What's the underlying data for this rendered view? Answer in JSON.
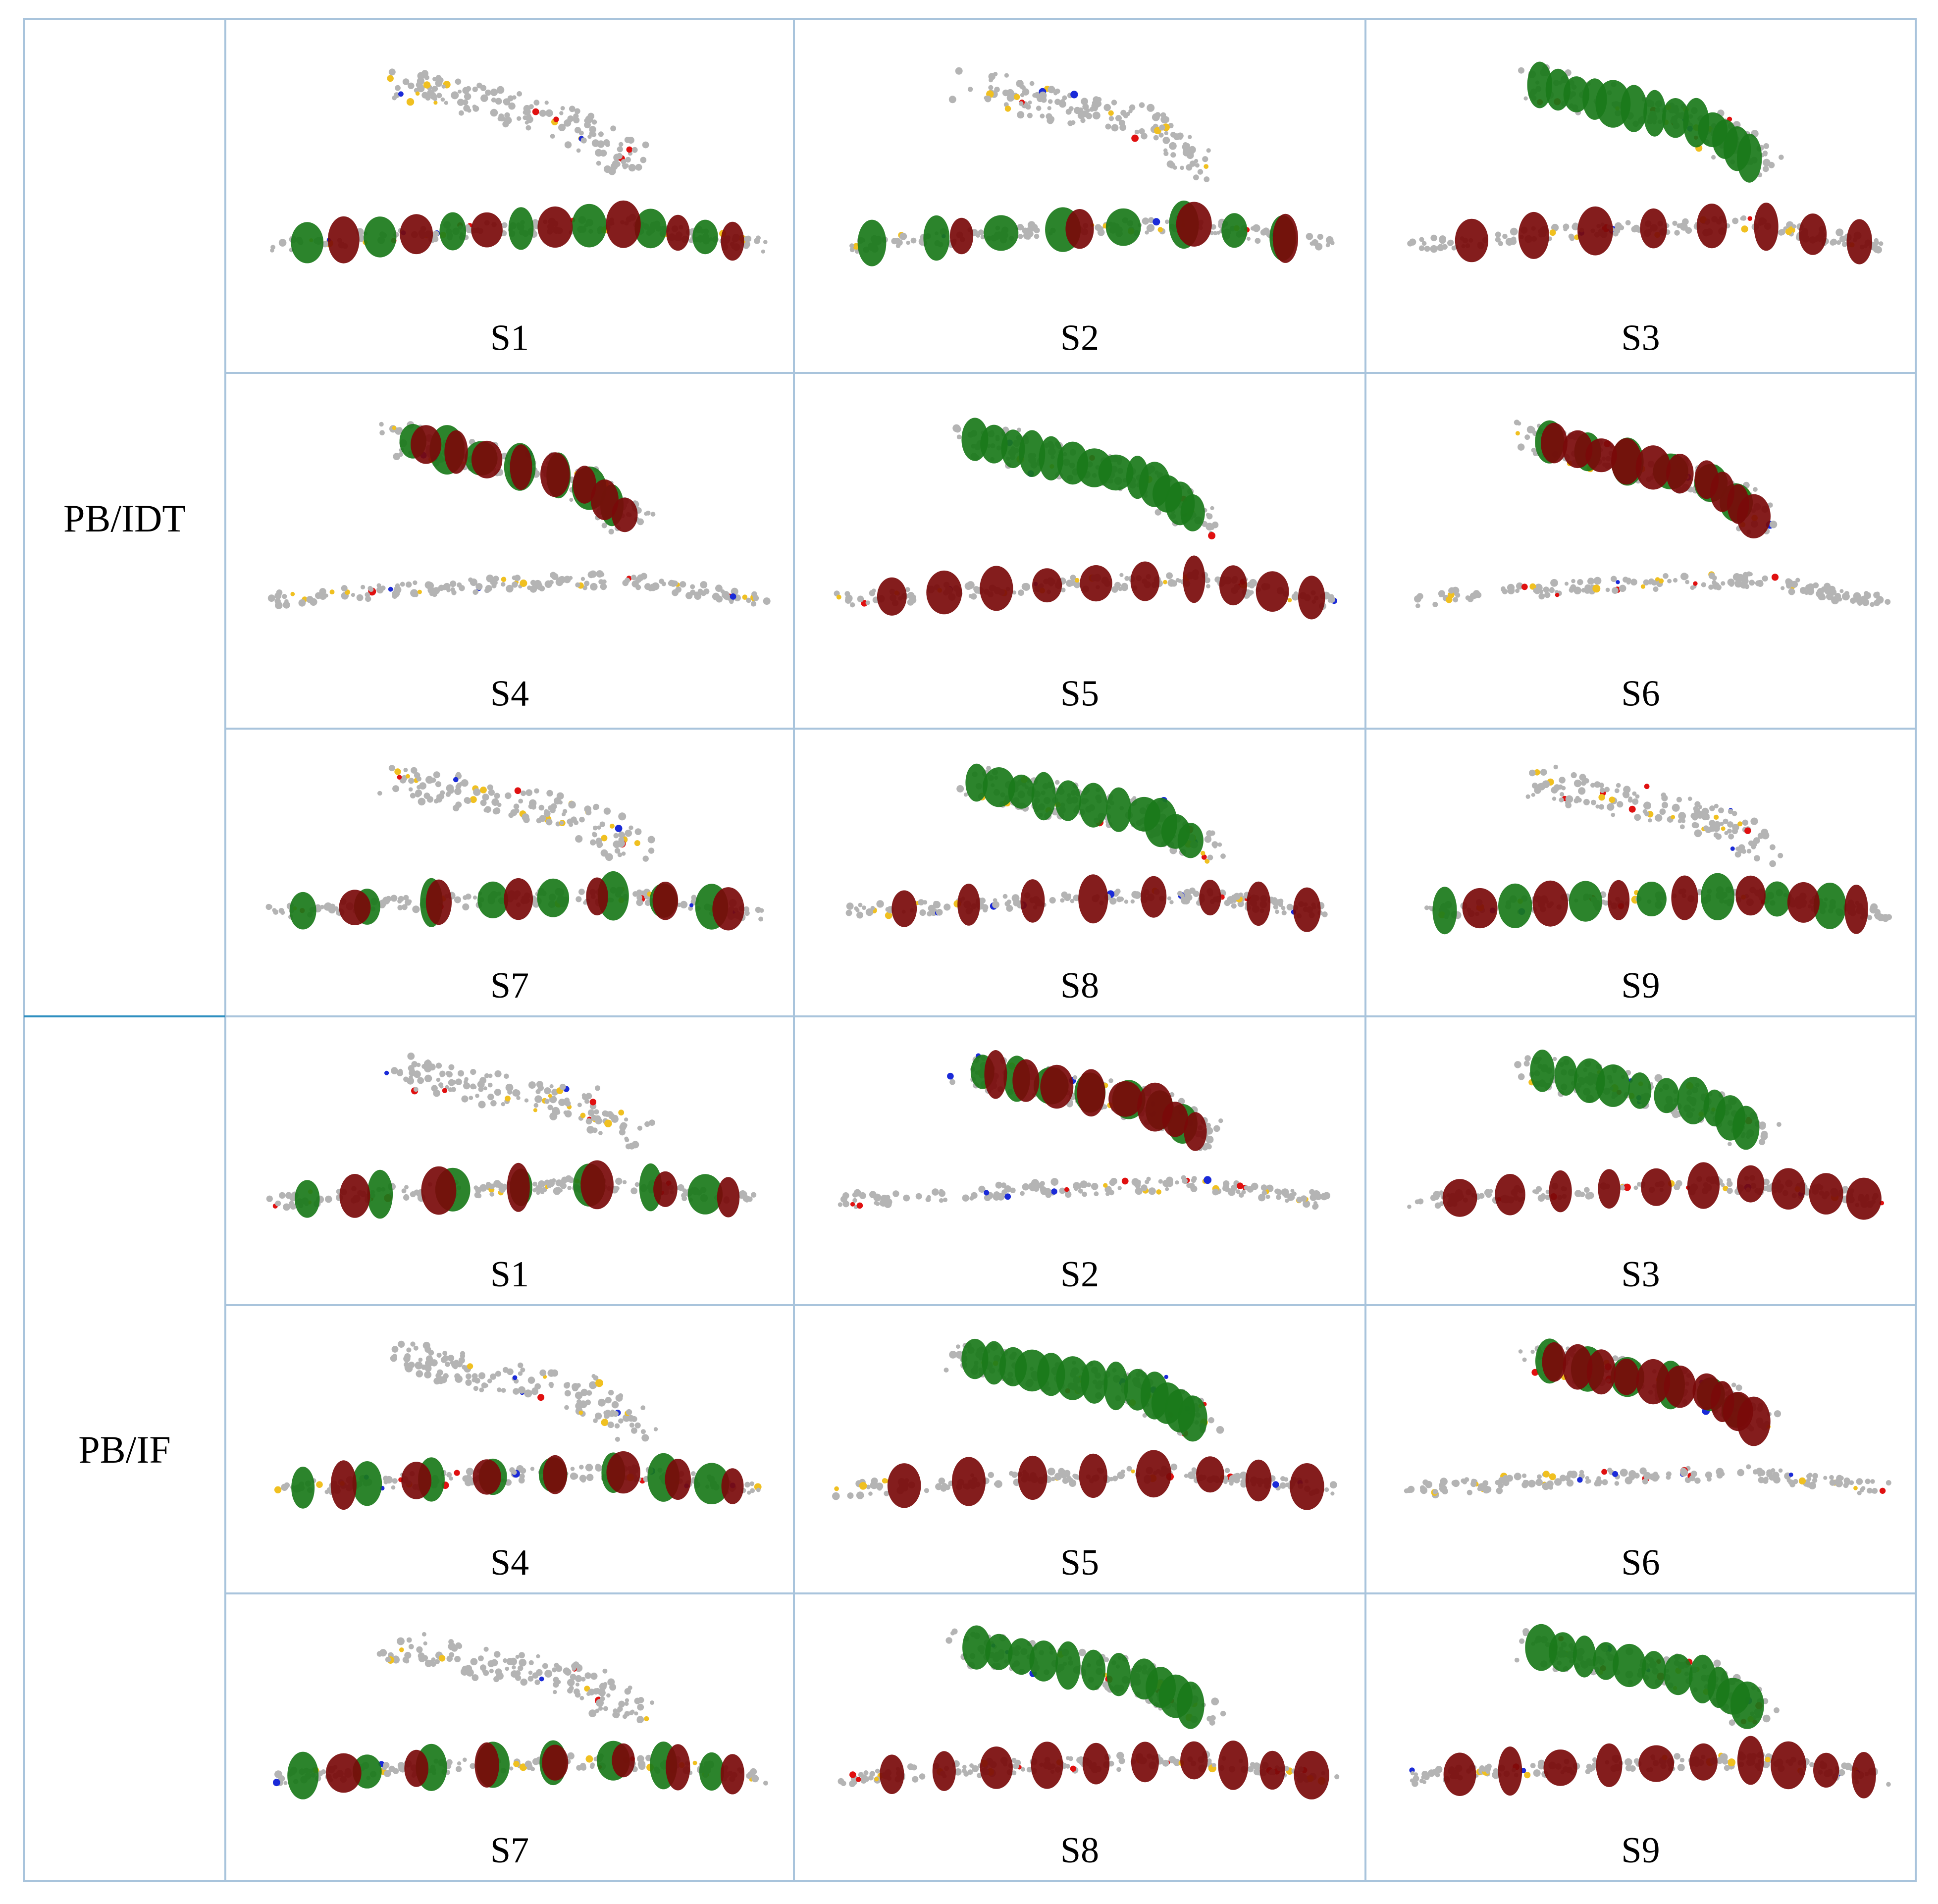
{
  "figure": {
    "groups": [
      {
        "label": "PB/IDT",
        "cells": [
          "S1",
          "S2",
          "S3",
          "S4",
          "S5",
          "S6",
          "S7",
          "S8",
          "S9"
        ]
      },
      {
        "label": "PB/IF",
        "cells": [
          "S1",
          "S2",
          "S3",
          "S4",
          "S5",
          "S6",
          "S7",
          "S8",
          "S9"
        ]
      }
    ]
  },
  "colors": {
    "grid_line": "#a9c4dc",
    "group_divider": "#2f8fc0",
    "lobe_green": "#1a7a1a",
    "lobe_red": "#7a0a0a",
    "atom_carbon": "#b4b4b4",
    "atom_sulfur": "#f0c020",
    "atom_oxygen": "#e01010",
    "atom_nitrogen": "#1a2ad8"
  },
  "cell_maps": {
    "PB/IDT": [
      {
        "top_green": 0,
        "top_red": 0,
        "bottom_green": 0.5,
        "bottom_red": 0.5
      },
      {
        "top_green": 0,
        "top_red": 0,
        "bottom_green": 0.6,
        "bottom_red": 0.3
      },
      {
        "top_green": 0.9,
        "top_red": 0,
        "bottom_green": 0,
        "bottom_red": 0.6
      },
      {
        "top_green": 0.5,
        "top_red": 0.6,
        "bottom_green": 0,
        "bottom_red": 0
      },
      {
        "top_green": 0.9,
        "top_red": 0,
        "bottom_green": 0,
        "bottom_red": 0.7
      },
      {
        "top_green": 0.4,
        "top_red": 0.7,
        "bottom_green": 0,
        "bottom_red": 0
      },
      {
        "top_green": 0,
        "top_red": 0,
        "bottom_green": 0.6,
        "bottom_red": 0.4
      },
      {
        "top_green": 0.8,
        "top_red": 0,
        "bottom_green": 0,
        "bottom_red": 0.6
      },
      {
        "top_green": 0,
        "top_red": 0,
        "bottom_green": 0.5,
        "bottom_red": 0.5
      }
    ],
    "PB/IF": [
      {
        "top_green": 0,
        "top_red": 0,
        "bottom_green": 0.5,
        "bottom_red": 0.4
      },
      {
        "top_green": 0.5,
        "top_red": 0.6,
        "bottom_green": 0,
        "bottom_red": 0
      },
      {
        "top_green": 0.7,
        "top_red": 0,
        "bottom_green": 0,
        "bottom_red": 0.7
      },
      {
        "top_green": 0,
        "top_red": 0,
        "bottom_green": 0.6,
        "bottom_red": 0.5
      },
      {
        "top_green": 0.9,
        "top_red": 0,
        "bottom_green": 0,
        "bottom_red": 0.6
      },
      {
        "top_green": 0.4,
        "top_red": 0.7,
        "bottom_green": 0,
        "bottom_red": 0
      },
      {
        "top_green": 0,
        "top_red": 0,
        "bottom_green": 0.6,
        "bottom_red": 0.5
      },
      {
        "top_green": 0.8,
        "top_red": 0,
        "bottom_green": 0,
        "bottom_red": 0.7
      },
      {
        "top_green": 0.8,
        "top_red": 0,
        "bottom_green": 0,
        "bottom_red": 0.7
      }
    ]
  }
}
